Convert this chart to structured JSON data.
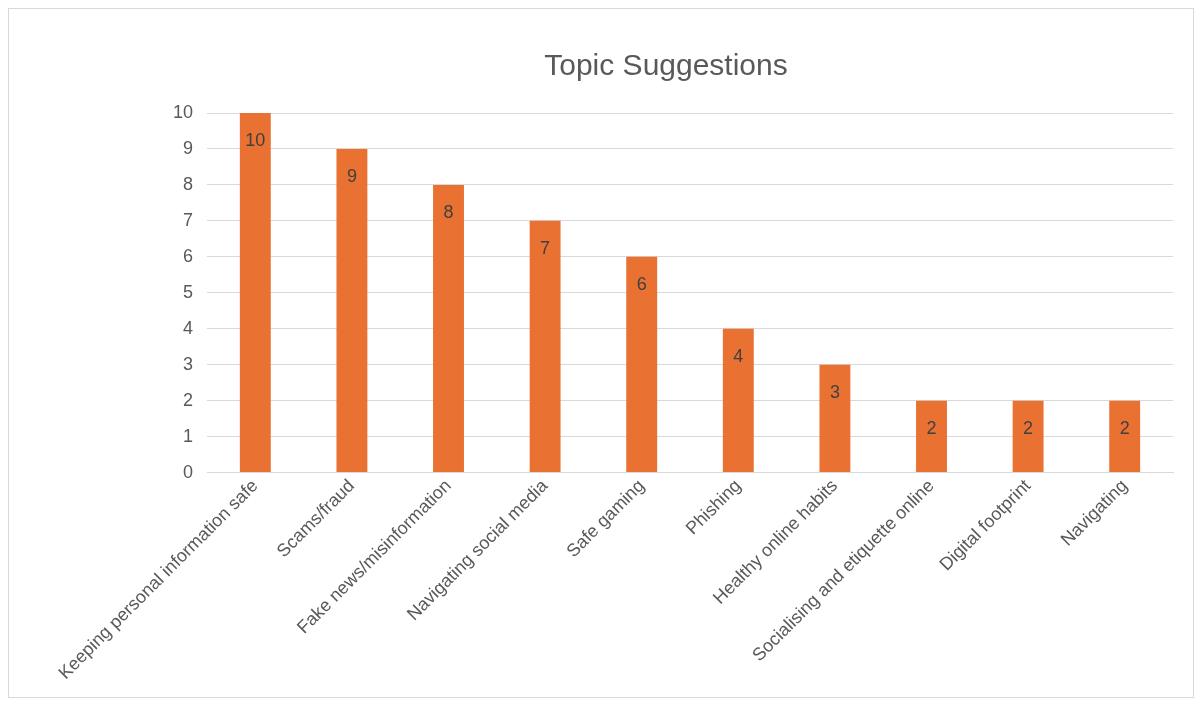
{
  "chart_data": {
    "type": "bar",
    "title": "Topic Suggestions",
    "categories": [
      "Keeping personal information safe",
      "Scams/fraud",
      "Fake news/misinformation",
      "Navigating social media",
      "Safe gaming",
      "Phishing",
      "Healthy online habits",
      "Socialising and etiquette online",
      "Digital footprint",
      "Navigating"
    ],
    "values": [
      10,
      9,
      8,
      7,
      6,
      4,
      3,
      2,
      2,
      2
    ],
    "color": "#e97132",
    "ylim": [
      0,
      10
    ],
    "yticks": [
      0,
      1,
      2,
      3,
      4,
      5,
      6,
      7,
      8,
      9,
      10
    ],
    "grid": "y",
    "legend": false,
    "data_labels": true
  }
}
